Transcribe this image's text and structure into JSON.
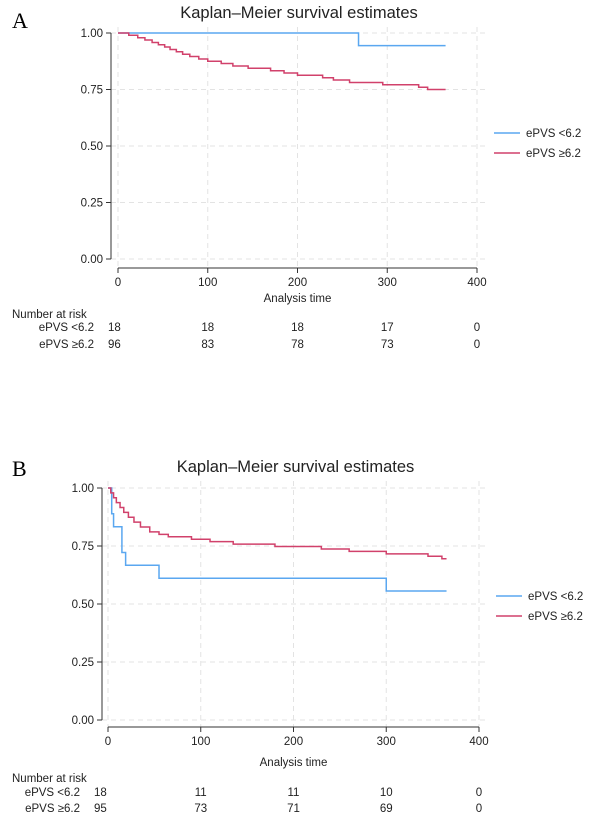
{
  "chart_data": [
    {
      "panel": "A",
      "type": "line",
      "step": true,
      "title": "Kaplan–Meier survival estimates",
      "xlabel": "Analysis time",
      "ylabel": "",
      "xlim": [
        0,
        400
      ],
      "ylim": [
        0,
        1
      ],
      "xticks": [
        0,
        100,
        200,
        300,
        400
      ],
      "yticks": [
        0,
        0.25,
        0.5,
        0.75,
        1
      ],
      "ytick_labels": [
        "0.00",
        "0.25",
        "0.50",
        "0.75",
        "1.00"
      ],
      "grid": true,
      "legend_position": "right",
      "series": [
        {
          "name": "ePVS <6.2",
          "color": "#5aa7f0",
          "points": [
            [
              0,
              1.0
            ],
            [
              268,
              1.0
            ],
            [
              268,
              0.944
            ],
            [
              365,
              0.944
            ]
          ]
        },
        {
          "name": "ePVS ≥6.2",
          "color": "#d1416b",
          "points": [
            [
              0,
              1.0
            ],
            [
              12,
              1.0
            ],
            [
              12,
              0.99
            ],
            [
              22,
              0.99
            ],
            [
              22,
              0.979
            ],
            [
              30,
              0.969
            ],
            [
              38,
              0.958
            ],
            [
              45,
              0.948
            ],
            [
              52,
              0.938
            ],
            [
              58,
              0.927
            ],
            [
              65,
              0.917
            ],
            [
              72,
              0.906
            ],
            [
              80,
              0.896
            ],
            [
              90,
              0.885
            ],
            [
              100,
              0.875
            ],
            [
              115,
              0.865
            ],
            [
              128,
              0.854
            ],
            [
              145,
              0.844
            ],
            [
              170,
              0.833
            ],
            [
              185,
              0.823
            ],
            [
              200,
              0.813
            ],
            [
              228,
              0.802
            ],
            [
              240,
              0.792
            ],
            [
              258,
              0.781
            ],
            [
              295,
              0.771
            ],
            [
              335,
              0.76
            ],
            [
              345,
              0.75
            ],
            [
              365,
              0.75
            ]
          ]
        }
      ],
      "risk_table": {
        "header": "Number at risk",
        "times": [
          0,
          100,
          200,
          300,
          400
        ],
        "rows": [
          {
            "label": "ePVS <6.2",
            "counts": [
              18,
              18,
              18,
              17,
              0
            ]
          },
          {
            "label": "ePVS ≥6.2",
            "counts": [
              96,
              83,
              78,
              73,
              0
            ]
          }
        ]
      }
    },
    {
      "panel": "B",
      "type": "line",
      "step": true,
      "title": "Kaplan–Meier survival estimates",
      "xlabel": "Analysis time",
      "ylabel": "",
      "xlim": [
        0,
        400
      ],
      "ylim": [
        0,
        1
      ],
      "xticks": [
        0,
        100,
        200,
        300,
        400
      ],
      "yticks": [
        0,
        0.25,
        0.5,
        0.75,
        1
      ],
      "ytick_labels": [
        "0.00",
        "0.25",
        "0.50",
        "0.75",
        "1.00"
      ],
      "grid": true,
      "legend_position": "right",
      "series": [
        {
          "name": "ePVS <6.2",
          "color": "#5aa7f0",
          "points": [
            [
              0,
              1.0
            ],
            [
              4,
              1.0
            ],
            [
              4,
              0.889
            ],
            [
              6,
              0.833
            ],
            [
              15,
              0.833
            ],
            [
              15,
              0.722
            ],
            [
              19,
              0.722
            ],
            [
              19,
              0.667
            ],
            [
              55,
              0.667
            ],
            [
              55,
              0.611
            ],
            [
              300,
              0.611
            ],
            [
              300,
              0.556
            ],
            [
              365,
              0.556
            ]
          ]
        },
        {
          "name": "ePVS ≥6.2",
          "color": "#d1416b",
          "points": [
            [
              0,
              1.0
            ],
            [
              3,
              1.0
            ],
            [
              3,
              0.979
            ],
            [
              6,
              0.958
            ],
            [
              9,
              0.937
            ],
            [
              13,
              0.916
            ],
            [
              17,
              0.895
            ],
            [
              22,
              0.874
            ],
            [
              28,
              0.853
            ],
            [
              35,
              0.832
            ],
            [
              45,
              0.811
            ],
            [
              55,
              0.8
            ],
            [
              65,
              0.79
            ],
            [
              90,
              0.779
            ],
            [
              110,
              0.769
            ],
            [
              135,
              0.758
            ],
            [
              180,
              0.748
            ],
            [
              230,
              0.737
            ],
            [
              260,
              0.727
            ],
            [
              300,
              0.716
            ],
            [
              345,
              0.706
            ],
            [
              360,
              0.695
            ],
            [
              365,
              0.695
            ]
          ]
        }
      ],
      "risk_table": {
        "header": "Number at risk",
        "times": [
          0,
          100,
          200,
          300,
          400
        ],
        "rows": [
          {
            "label": "ePVS <6.2",
            "counts": [
              18,
              11,
              11,
              10,
              0
            ]
          },
          {
            "label": "ePVS ≥6.2",
            "counts": [
              95,
              73,
              71,
              69,
              0
            ]
          }
        ]
      }
    }
  ]
}
